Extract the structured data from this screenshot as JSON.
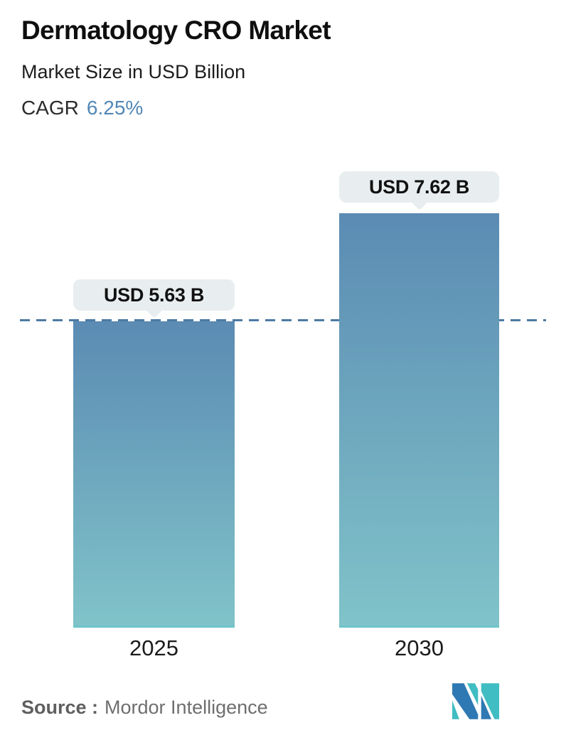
{
  "header": {
    "title": "Dermatology CRO Market",
    "subtitle": "Market Size in USD Billion",
    "cagr_label": "CAGR",
    "cagr_value": "6.25%"
  },
  "chart_data": {
    "type": "bar",
    "title": "Dermatology CRO Market",
    "ylabel": "Market Size in USD Billion",
    "unit": "USD Billion",
    "categories": [
      "2025",
      "2030"
    ],
    "values": [
      5.63,
      7.62
    ],
    "value_labels": [
      "USD 5.63 B",
      "USD 7.62 B"
    ],
    "cagr_percent": 6.25,
    "ylim": [
      0,
      7.62
    ],
    "grid": false,
    "legend": "none",
    "reference_line": {
      "value": 5.63,
      "style": "dashed"
    }
  },
  "footer": {
    "source_label": "Source :",
    "source_value": "Mordor Intelligence"
  },
  "colors": {
    "title_text": "#0f0f0f",
    "cagr_value_text": "#5287b6",
    "bar_gradient_top": "#5b8bb3",
    "bar_gradient_bottom": "#80c3c9",
    "dashed_line": "#4d7ba4",
    "tooltip_bg": "#e8eef0",
    "tooltip_text": "#111111",
    "axis_label_text": "#1b1b1b",
    "source_text": "#6e6e6e",
    "logo_teal": "#3fbdc2",
    "logo_blue": "#2e79b3"
  }
}
